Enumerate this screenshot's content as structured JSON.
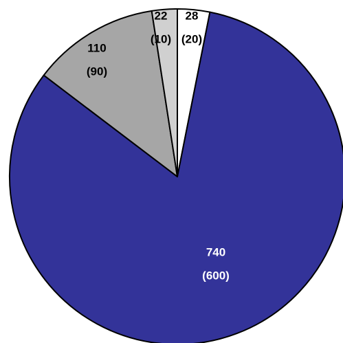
{
  "chart_data": {
    "type": "pie",
    "title": "",
    "slices": [
      {
        "value": 28,
        "line1": "28",
        "line2": "(20)",
        "color": "#ffffff",
        "text_color": "#000000"
      },
      {
        "value": 740,
        "line1": "740",
        "line2": "(600)",
        "color": "#333399",
        "text_color": "#ffffff"
      },
      {
        "value": 110,
        "line1": "110",
        "line2": "(90)",
        "color": "#a6a6a6",
        "text_color": "#000000"
      },
      {
        "value": 22,
        "line1": "22",
        "line2": "(10)",
        "color": "#d0d0d0",
        "text_color": "#000000"
      }
    ],
    "start_angle_deg": 0,
    "direction": "clockwise"
  }
}
